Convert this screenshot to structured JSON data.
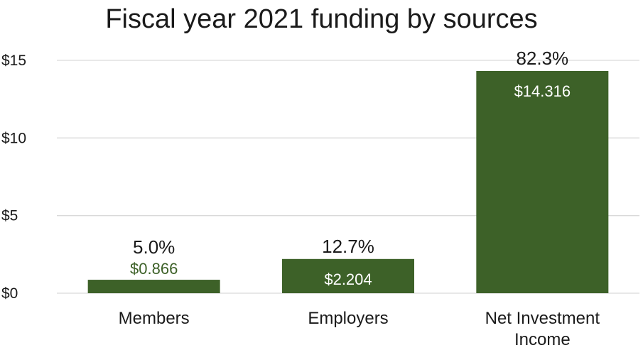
{
  "chart_data": {
    "type": "bar",
    "title": "Fiscal year 2021 funding by sources",
    "xlabel": "",
    "ylabel": "",
    "categories": [
      "Members",
      "Employers",
      "Net Investment Income"
    ],
    "category_lines": [
      [
        "Members"
      ],
      [
        "Employers"
      ],
      [
        "Net Investment",
        "Income"
      ]
    ],
    "values": [
      0.866,
      2.204,
      14.316
    ],
    "value_labels": [
      "$0.866",
      "$2.204",
      "$14.316"
    ],
    "percent_labels": [
      "5.0%",
      "12.7%",
      "82.3%"
    ],
    "ylim": [
      0,
      15
    ],
    "yticks": [
      0,
      5,
      10,
      15
    ],
    "ytick_labels": [
      "$0",
      "$5",
      "$10",
      "$15"
    ],
    "grid": true,
    "legend": "none",
    "colors": {
      "bar": "#3d6128",
      "value_label_inside": "#ffffff",
      "value_label_outside": "#3d6128",
      "grid": "#d9d9d9",
      "text": "#1a1a1a"
    }
  }
}
